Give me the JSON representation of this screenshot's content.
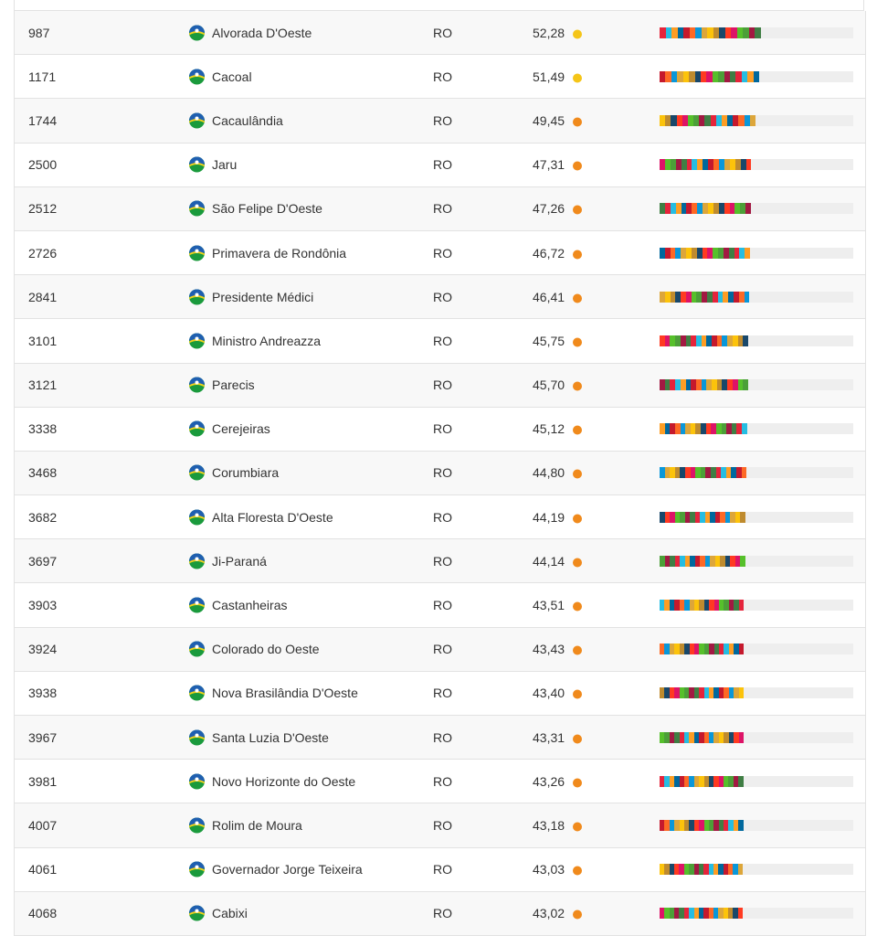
{
  "table": {
    "rows": [
      {
        "rank": 987,
        "city": "Alvorada D'Oeste",
        "state": "RO",
        "score": {
          "value": 52.28,
          "label": "52,28"
        },
        "dot_color": "#f5c518"
      },
      {
        "rank": 1171,
        "city": "Cacoal",
        "state": "RO",
        "score": {
          "value": 51.49,
          "label": "51,49"
        },
        "dot_color": "#f5c518"
      },
      {
        "rank": 1744,
        "city": "Cacaulândia",
        "state": "RO",
        "score": {
          "value": 49.45,
          "label": "49,45"
        },
        "dot_color": "#f08a1c"
      },
      {
        "rank": 2500,
        "city": "Jaru",
        "state": "RO",
        "score": {
          "value": 47.31,
          "label": "47,31"
        },
        "dot_color": "#f08a1c"
      },
      {
        "rank": 2512,
        "city": "São Felipe D'Oeste",
        "state": "RO",
        "score": {
          "value": 47.26,
          "label": "47,26"
        },
        "dot_color": "#f08a1c"
      },
      {
        "rank": 2726,
        "city": "Primavera de Rondônia",
        "state": "RO",
        "score": {
          "value": 46.72,
          "label": "46,72"
        },
        "dot_color": "#f08a1c"
      },
      {
        "rank": 2841,
        "city": "Presidente Médici",
        "state": "RO",
        "score": {
          "value": 46.41,
          "label": "46,41"
        },
        "dot_color": "#f08a1c"
      },
      {
        "rank": 3101,
        "city": "Ministro Andreazza",
        "state": "RO",
        "score": {
          "value": 45.75,
          "label": "45,75"
        },
        "dot_color": "#f08a1c"
      },
      {
        "rank": 3121,
        "city": "Parecis",
        "state": "RO",
        "score": {
          "value": 45.7,
          "label": "45,70"
        },
        "dot_color": "#f08a1c"
      },
      {
        "rank": 3338,
        "city": "Cerejeiras",
        "state": "RO",
        "score": {
          "value": 45.12,
          "label": "45,12"
        },
        "dot_color": "#f08a1c"
      },
      {
        "rank": 3468,
        "city": "Corumbiara",
        "state": "RO",
        "score": {
          "value": 44.8,
          "label": "44,80"
        },
        "dot_color": "#f08a1c"
      },
      {
        "rank": 3682,
        "city": "Alta Floresta D'Oeste",
        "state": "RO",
        "score": {
          "value": 44.19,
          "label": "44,19"
        },
        "dot_color": "#f08a1c"
      },
      {
        "rank": 3697,
        "city": "Ji-Paraná",
        "state": "RO",
        "score": {
          "value": 44.14,
          "label": "44,14"
        },
        "dot_color": "#f08a1c"
      },
      {
        "rank": 3903,
        "city": "Castanheiras",
        "state": "RO",
        "score": {
          "value": 43.51,
          "label": "43,51"
        },
        "dot_color": "#f08a1c"
      },
      {
        "rank": 3924,
        "city": "Colorado do Oeste",
        "state": "RO",
        "score": {
          "value": 43.43,
          "label": "43,43"
        },
        "dot_color": "#f08a1c"
      },
      {
        "rank": 3938,
        "city": "Nova Brasilândia D'Oeste",
        "state": "RO",
        "score": {
          "value": 43.4,
          "label": "43,40"
        },
        "dot_color": "#f08a1c"
      },
      {
        "rank": 3967,
        "city": "Santa Luzia D'Oeste",
        "state": "RO",
        "score": {
          "value": 43.31,
          "label": "43,31"
        },
        "dot_color": "#f08a1c"
      },
      {
        "rank": 3981,
        "city": "Novo Horizonte do Oeste",
        "state": "RO",
        "score": {
          "value": 43.26,
          "label": "43,26"
        },
        "dot_color": "#f08a1c"
      },
      {
        "rank": 4007,
        "city": "Rolim de Moura",
        "state": "RO",
        "score": {
          "value": 43.18,
          "label": "43,18"
        },
        "dot_color": "#f08a1c"
      },
      {
        "rank": 4061,
        "city": "Governador Jorge Teixeira",
        "state": "RO",
        "score": {
          "value": 43.03,
          "label": "43,03"
        },
        "dot_color": "#f08a1c"
      },
      {
        "rank": 4068,
        "city": "Cabixi",
        "state": "RO",
        "score": {
          "value": 43.02,
          "label": "43,02"
        },
        "dot_color": "#f08a1c"
      }
    ]
  }
}
